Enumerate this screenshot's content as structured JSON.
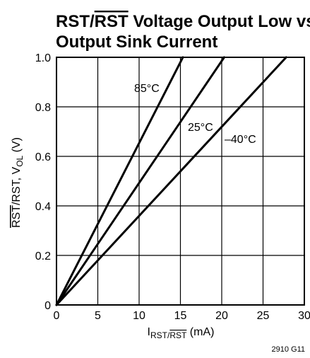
{
  "chart_data": {
    "type": "line",
    "title_line1_prefix": "RST/",
    "title_line1_overline": "RST",
    "title_line1_suffix": " Voltage Output Low vs",
    "title_line2": "Output Sink Current",
    "xlabel_main": "I",
    "xlabel_sub_plain": "RST/",
    "xlabel_sub_overline": "RST",
    "xlabel_unit": " (mA)",
    "ylabel_overline": "RST",
    "ylabel_after_overline": "/RST, V",
    "ylabel_sub": "OL",
    "ylabel_unit": " (V)",
    "xlim": [
      0,
      30
    ],
    "ylim": [
      0,
      1.0
    ],
    "x_ticks": [
      "0",
      "5",
      "10",
      "15",
      "20",
      "25",
      "30"
    ],
    "y_ticks": [
      "0",
      "0.2",
      "0.4",
      "0.6",
      "0.8",
      "1.0"
    ],
    "grid": true,
    "series": [
      {
        "name": "85°C",
        "x": [
          0,
          15.3
        ],
        "y": [
          0,
          1.0
        ]
      },
      {
        "name": "25°C",
        "x": [
          0,
          20.3
        ],
        "y": [
          0,
          1.0
        ]
      },
      {
        "name": "–40°C",
        "x": [
          0,
          27.8
        ],
        "y": [
          0,
          1.0
        ]
      }
    ],
    "figure_id": "2910 G11"
  }
}
